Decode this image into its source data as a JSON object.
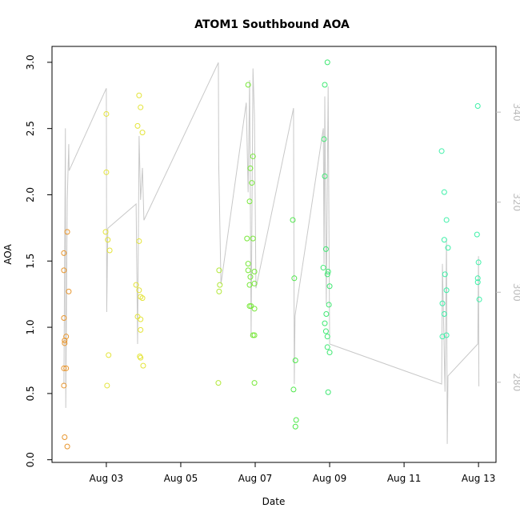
{
  "chart_data": {
    "type": "scatter",
    "title": "ATOM1 Southbound AOA",
    "x_label": "Date",
    "y_label": "AOA",
    "xlim": [
      1.54,
      13.47
    ],
    "ylim": [
      -0.02,
      3.12
    ],
    "y2lim": [
      262.2,
      354.6
    ],
    "xticks": [
      {
        "value": 3,
        "label": "Aug 03"
      },
      {
        "value": 5,
        "label": "Aug 05"
      },
      {
        "value": 7,
        "label": "Aug 07"
      },
      {
        "value": 9,
        "label": "Aug 09"
      },
      {
        "value": 11,
        "label": "Aug 11"
      },
      {
        "value": 13,
        "label": "Aug 13"
      }
    ],
    "yticks": [
      {
        "value": 0,
        "label": "0.0"
      },
      0.5,
      {
        "value": 1,
        "label": "1.0"
      },
      1.5,
      {
        "value": 2,
        "label": "2.0"
      },
      2.5,
      {
        "value": 3,
        "label": "3.0"
      }
    ],
    "y2ticks": [
      280,
      300,
      320,
      340
    ],
    "y2_color": "#bbbbbb",
    "series": [
      {
        "type": "line",
        "axis": "y2",
        "color": "#c8c8c8",
        "x": [
          1.86,
          1.9,
          1.91,
          1.95,
          1.99,
          2.0,
          3.0,
          3.01,
          3.04,
          3.8,
          3.84,
          3.88,
          3.92,
          3.97,
          4.01,
          6.01,
          6.02,
          6.08,
          6.76,
          6.81,
          6.85,
          6.89,
          6.94,
          6.98,
          7.02,
          8.03,
          8.05,
          8.07,
          8.1,
          8.83,
          8.85,
          8.87,
          8.91,
          8.96,
          9.0,
          12.01,
          12.03,
          12.1,
          12.14,
          12.16,
          12.18,
          12.98,
          13.0,
          13.01
        ],
        "values": [
          279.6,
          336.4,
          274.3,
          320.5,
          332.9,
          327.0,
          345.3,
          295.6,
          314.2,
          319.6,
          288.5,
          334.7,
          320.5,
          327.6,
          316.0,
          351.0,
          328.4,
          301.8,
          342.1,
          322.2,
          347.1,
          290.3,
          349.7,
          339.1,
          300.9,
          340.9,
          279.6,
          294.7,
          296.5,
          336.4,
          306.3,
          343.5,
          297.4,
          345.7,
          288.5,
          279.6,
          306.3,
          277.9,
          311.9,
          266.3,
          281.4,
          288.5,
          308.0,
          279.1
        ]
      },
      {
        "color": "#e8962e",
        "x": [
          1.86,
          1.86,
          1.86,
          1.88,
          1.88,
          1.92,
          1.99,
          1.95,
          1.86,
          1.92,
          1.86,
          1.88,
          1.95
        ],
        "values": [
          1.56,
          1.43,
          1.07,
          0.9,
          0.88,
          0.93,
          1.27,
          1.72,
          0.69,
          0.69,
          0.56,
          0.17,
          0.1
        ]
      },
      {
        "color": "#e4e43a",
        "x": [
          3.0,
          3.0,
          2.98,
          3.04,
          3.09,
          3.06,
          3.02,
          3.88,
          3.92,
          3.84,
          3.97,
          3.88,
          3.8,
          3.88,
          3.92,
          3.97,
          3.84,
          3.92,
          3.92,
          3.9,
          3.92,
          3.99
        ],
        "values": [
          2.61,
          2.17,
          1.72,
          1.66,
          1.58,
          0.79,
          0.56,
          2.75,
          2.66,
          2.52,
          2.47,
          1.65,
          1.32,
          1.28,
          1.23,
          1.22,
          1.08,
          1.06,
          0.98,
          0.78,
          0.77,
          0.71
        ]
      },
      {
        "color": "#b2e83a",
        "x": [
          6.03,
          6.05,
          6.03,
          6.01
        ],
        "values": [
          1.43,
          1.32,
          1.27,
          0.58
        ]
      },
      {
        "color": "#78e83a",
        "x": [
          6.81,
          6.87,
          6.91,
          6.94,
          6.85,
          6.78,
          6.94,
          6.81,
          6.81,
          6.87,
          6.98,
          6.85,
          6.98,
          6.85,
          6.89,
          6.98,
          6.94,
          6.98,
          6.98
        ],
        "values": [
          2.83,
          2.2,
          2.09,
          2.29,
          1.95,
          1.67,
          1.67,
          1.48,
          1.43,
          1.38,
          1.42,
          1.32,
          1.33,
          1.16,
          1.16,
          1.14,
          0.94,
          0.94,
          0.58
        ]
      },
      {
        "color": "#4ee84a",
        "x": [
          8.01,
          8.05,
          8.08,
          8.03,
          8.1,
          8.08
        ],
        "values": [
          1.81,
          1.37,
          0.75,
          0.53,
          0.3,
          0.25
        ]
      },
      {
        "color": "#3ee872",
        "x": [
          8.94,
          8.87,
          8.85,
          8.87,
          8.9,
          8.83,
          8.96,
          8.94,
          9.0,
          8.98,
          8.91,
          8.87,
          8.9,
          8.94,
          8.94,
          9.0,
          8.96
        ],
        "values": [
          3.0,
          2.83,
          2.42,
          2.14,
          1.59,
          1.45,
          1.42,
          1.4,
          1.31,
          1.17,
          1.1,
          1.03,
          0.97,
          0.93,
          0.85,
          0.81,
          0.51
        ]
      },
      {
        "color": "#3ef0a8",
        "x": [
          12.01,
          12.08,
          12.14,
          12.08,
          12.18,
          12.1,
          12.14,
          12.03,
          12.08,
          12.03,
          12.14,
          12.98,
          12.96,
          13.0,
          12.98,
          12.98,
          13.02
        ],
        "values": [
          2.33,
          2.02,
          1.81,
          1.66,
          1.6,
          1.4,
          1.28,
          1.18,
          1.1,
          0.93,
          0.94,
          2.67,
          1.7,
          1.49,
          1.37,
          1.34,
          1.21
        ]
      }
    ]
  }
}
